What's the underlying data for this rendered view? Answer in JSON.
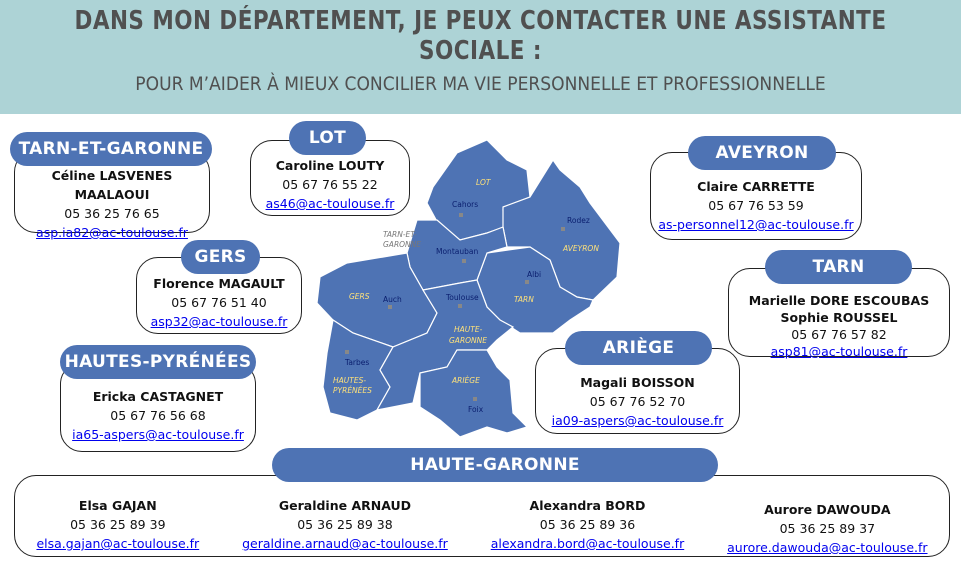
{
  "header": {
    "title": "DANS MON DÉPARTEMENT, JE PEUX CONTACTER UNE ASSISTANTE SOCIALE :",
    "subtitle": "POUR M’AIDER À MIEUX CONCILIER MA VIE PERSONNELLE ET PROFESSIONNELLE"
  },
  "colors": {
    "header_bg": "#add3d6",
    "accent": "#4e73b4",
    "link": "#0000ee",
    "dept_label": "#ffe27a",
    "city_label": "#0a1e6e"
  },
  "departments": {
    "tarn_et_garonne": {
      "label": "TARN-ET-GARONNE",
      "name": "Céline LASVENES  MAALAOUI",
      "phone": "05 36 25 76 65",
      "email": "asp.ia82@ac-toulouse.fr"
    },
    "lot": {
      "label": "LOT",
      "name": "Caroline LOUTY",
      "phone": "05 67 76 55 22",
      "email": "as46@ac-toulouse.fr"
    },
    "gers": {
      "label": "GERS",
      "name": "Florence  MAGAULT",
      "phone": "05 67 76 51 40",
      "email": "asp32@ac-toulouse.fr"
    },
    "hautes_pyrenees": {
      "label": "HAUTES-PYRÉNÉES",
      "name": "Ericka CASTAGNET",
      "phone": "05 67 76 56 68",
      "email": "ia65-aspers@ac-toulouse.fr"
    },
    "aveyron": {
      "label": "AVEYRON",
      "name": "Claire CARRETTE",
      "phone": "05 67 76 53 59",
      "email": "as-personnel12@ac-toulouse.fr"
    },
    "tarn": {
      "label": "TARN",
      "name": "Marielle DORE ESCOUBAS",
      "name2": "Sophie ROUSSEL",
      "phone": "05 67 76 57 82",
      "email": "asp81@ac-toulouse.fr"
    },
    "ariege": {
      "label": "ARIÈGE",
      "name": "Magali BOISSON",
      "phone": "05 67 76 52 70",
      "email": "ia09-aspers@ac-toulouse.fr"
    },
    "haute_garonne": {
      "label": "HAUTE-GARONNE",
      "contacts": [
        {
          "name": "Elsa GAJAN",
          "phone": "05 36 25 89 39",
          "email": "elsa.gajan@ac-toulouse.fr"
        },
        {
          "name": "Geraldine ARNAUD",
          "phone": "05 36 25 89 38",
          "email": "geraldine.arnaud@ac-toulouse.fr"
        },
        {
          "name": "Alexandra BORD",
          "phone": "05 36 25 89 36",
          "email": "alexandra.bord@ac-toulouse.fr"
        },
        {
          "name": "Aurore DAWOUDA",
          "phone": "05 36 25 89 37",
          "email": "aurore.dawouda@ac-toulouse.fr"
        }
      ]
    }
  },
  "map": {
    "dept_labels": [
      "LOT",
      "AVEYRON",
      "TARN",
      "TARN-ET-",
      "GARONNE",
      "GERS",
      "HAUTE-",
      "GARONNE",
      "HAUTES-",
      "PYRÉNÉES",
      "ARIÈGE"
    ],
    "cities": [
      "Cahors",
      "Rodez",
      "Montauban",
      "Albi",
      "Toulouse",
      "Auch",
      "Tarbes",
      "Foix"
    ]
  }
}
